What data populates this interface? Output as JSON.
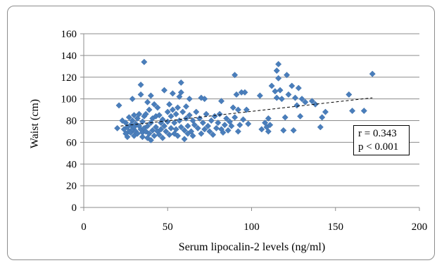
{
  "chart_data": {
    "type": "scatter",
    "title": "",
    "xlabel": "Serum lipocalin-2 levels (ng/ml)",
    "ylabel": "Waist (cm)",
    "xlim": [
      0,
      200
    ],
    "ylim": [
      0,
      160
    ],
    "xticks": [
      0,
      50,
      100,
      150,
      200
    ],
    "yticks": [
      0,
      20,
      40,
      60,
      80,
      100,
      120,
      140,
      160
    ],
    "grid": "horizontal",
    "legend": "none",
    "marker_color": "#4a7ebb",
    "trendline": {
      "style": "dashed",
      "x": [
        22,
        172
      ],
      "y": [
        75,
        101
      ]
    },
    "annotation": {
      "r": "r = 0.343",
      "p": "p < 0.001"
    },
    "points": [
      [
        20,
        73
      ],
      [
        21,
        94
      ],
      [
        23,
        80
      ],
      [
        24,
        72
      ],
      [
        25,
        68
      ],
      [
        25,
        78
      ],
      [
        26,
        65
      ],
      [
        26,
        74
      ],
      [
        27,
        70
      ],
      [
        27,
        83
      ],
      [
        28,
        76
      ],
      [
        28,
        69
      ],
      [
        29,
        80
      ],
      [
        29,
        72
      ],
      [
        29,
        100
      ],
      [
        30,
        85
      ],
      [
        30,
        66
      ],
      [
        30,
        74
      ],
      [
        31,
        77
      ],
      [
        31,
        70
      ],
      [
        32,
        82
      ],
      [
        32,
        68
      ],
      [
        33,
        75
      ],
      [
        33,
        86
      ],
      [
        34,
        72
      ],
      [
        34,
        113
      ],
      [
        34,
        104
      ],
      [
        35,
        79
      ],
      [
        35,
        65
      ],
      [
        35,
        69
      ],
      [
        36,
        134
      ],
      [
        36,
        84
      ],
      [
        36,
        73
      ],
      [
        37,
        86
      ],
      [
        37,
        70
      ],
      [
        38,
        97
      ],
      [
        38,
        75
      ],
      [
        38,
        64
      ],
      [
        39,
        90
      ],
      [
        39,
        68
      ],
      [
        40,
        78
      ],
      [
        40,
        62
      ],
      [
        40,
        103
      ],
      [
        41,
        82
      ],
      [
        41,
        71
      ],
      [
        42,
        95
      ],
      [
        42,
        66
      ],
      [
        43,
        84
      ],
      [
        43,
        74
      ],
      [
        44,
        70
      ],
      [
        44,
        92
      ],
      [
        45,
        85
      ],
      [
        45,
        67
      ],
      [
        46,
        78
      ],
      [
        46,
        72
      ],
      [
        47,
        64
      ],
      [
        47,
        81
      ],
      [
        48,
        108
      ],
      [
        48,
        75
      ],
      [
        49,
        70
      ],
      [
        50,
        88
      ],
      [
        50,
        79
      ],
      [
        51,
        95
      ],
      [
        51,
        67
      ],
      [
        52,
        73
      ],
      [
        52,
        84
      ],
      [
        53,
        105
      ],
      [
        53,
        90
      ],
      [
        54,
        68
      ],
      [
        54,
        78
      ],
      [
        55,
        86
      ],
      [
        55,
        72
      ],
      [
        56,
        92
      ],
      [
        56,
        66
      ],
      [
        57,
        102
      ],
      [
        57,
        80
      ],
      [
        58,
        115
      ],
      [
        58,
        106
      ],
      [
        58,
        74
      ],
      [
        59,
        88
      ],
      [
        60,
        63
      ],
      [
        60,
        71
      ],
      [
        61,
        93
      ],
      [
        61,
        82
      ],
      [
        62,
        68
      ],
      [
        62,
        75
      ],
      [
        63,
        100
      ],
      [
        63,
        85
      ],
      [
        64,
        70
      ],
      [
        65,
        80
      ],
      [
        65,
        66
      ],
      [
        66,
        76
      ],
      [
        67,
        88
      ],
      [
        68,
        73
      ],
      [
        69,
        82
      ],
      [
        70,
        68
      ],
      [
        70,
        101
      ],
      [
        71,
        78
      ],
      [
        72,
        72
      ],
      [
        72,
        100
      ],
      [
        73,
        86
      ],
      [
        74,
        75
      ],
      [
        75,
        70
      ],
      [
        76,
        80
      ],
      [
        77,
        67
      ],
      [
        78,
        84
      ],
      [
        79,
        73
      ],
      [
        80,
        78
      ],
      [
        81,
        86
      ],
      [
        82,
        72
      ],
      [
        82,
        98
      ],
      [
        83,
        69
      ],
      [
        84,
        76
      ],
      [
        85,
        82
      ],
      [
        86,
        71
      ],
      [
        87,
        79
      ],
      [
        88,
        75
      ],
      [
        89,
        92
      ],
      [
        90,
        122
      ],
      [
        90,
        83
      ],
      [
        91,
        104
      ],
      [
        92,
        90
      ],
      [
        92,
        70
      ],
      [
        93,
        76
      ],
      [
        94,
        106
      ],
      [
        95,
        81
      ],
      [
        96,
        106
      ],
      [
        97,
        90
      ],
      [
        98,
        77
      ],
      [
        105,
        103
      ],
      [
        106,
        72
      ],
      [
        108,
        78
      ],
      [
        109,
        74
      ],
      [
        110,
        82
      ],
      [
        110,
        70
      ],
      [
        111,
        76
      ],
      [
        112,
        112
      ],
      [
        114,
        107
      ],
      [
        115,
        101
      ],
      [
        115,
        126
      ],
      [
        116,
        132
      ],
      [
        116,
        119
      ],
      [
        117,
        108
      ],
      [
        118,
        100
      ],
      [
        119,
        71
      ],
      [
        120,
        83
      ],
      [
        121,
        122
      ],
      [
        122,
        104
      ],
      [
        124,
        112
      ],
      [
        125,
        71
      ],
      [
        126,
        101
      ],
      [
        127,
        94
      ],
      [
        128,
        110
      ],
      [
        129,
        84
      ],
      [
        130,
        100
      ],
      [
        132,
        97
      ],
      [
        136,
        98
      ],
      [
        138,
        95
      ],
      [
        141,
        74
      ],
      [
        142,
        83
      ],
      [
        144,
        88
      ],
      [
        158,
        104
      ],
      [
        160,
        89
      ],
      [
        167,
        89
      ],
      [
        172,
        123
      ]
    ]
  }
}
